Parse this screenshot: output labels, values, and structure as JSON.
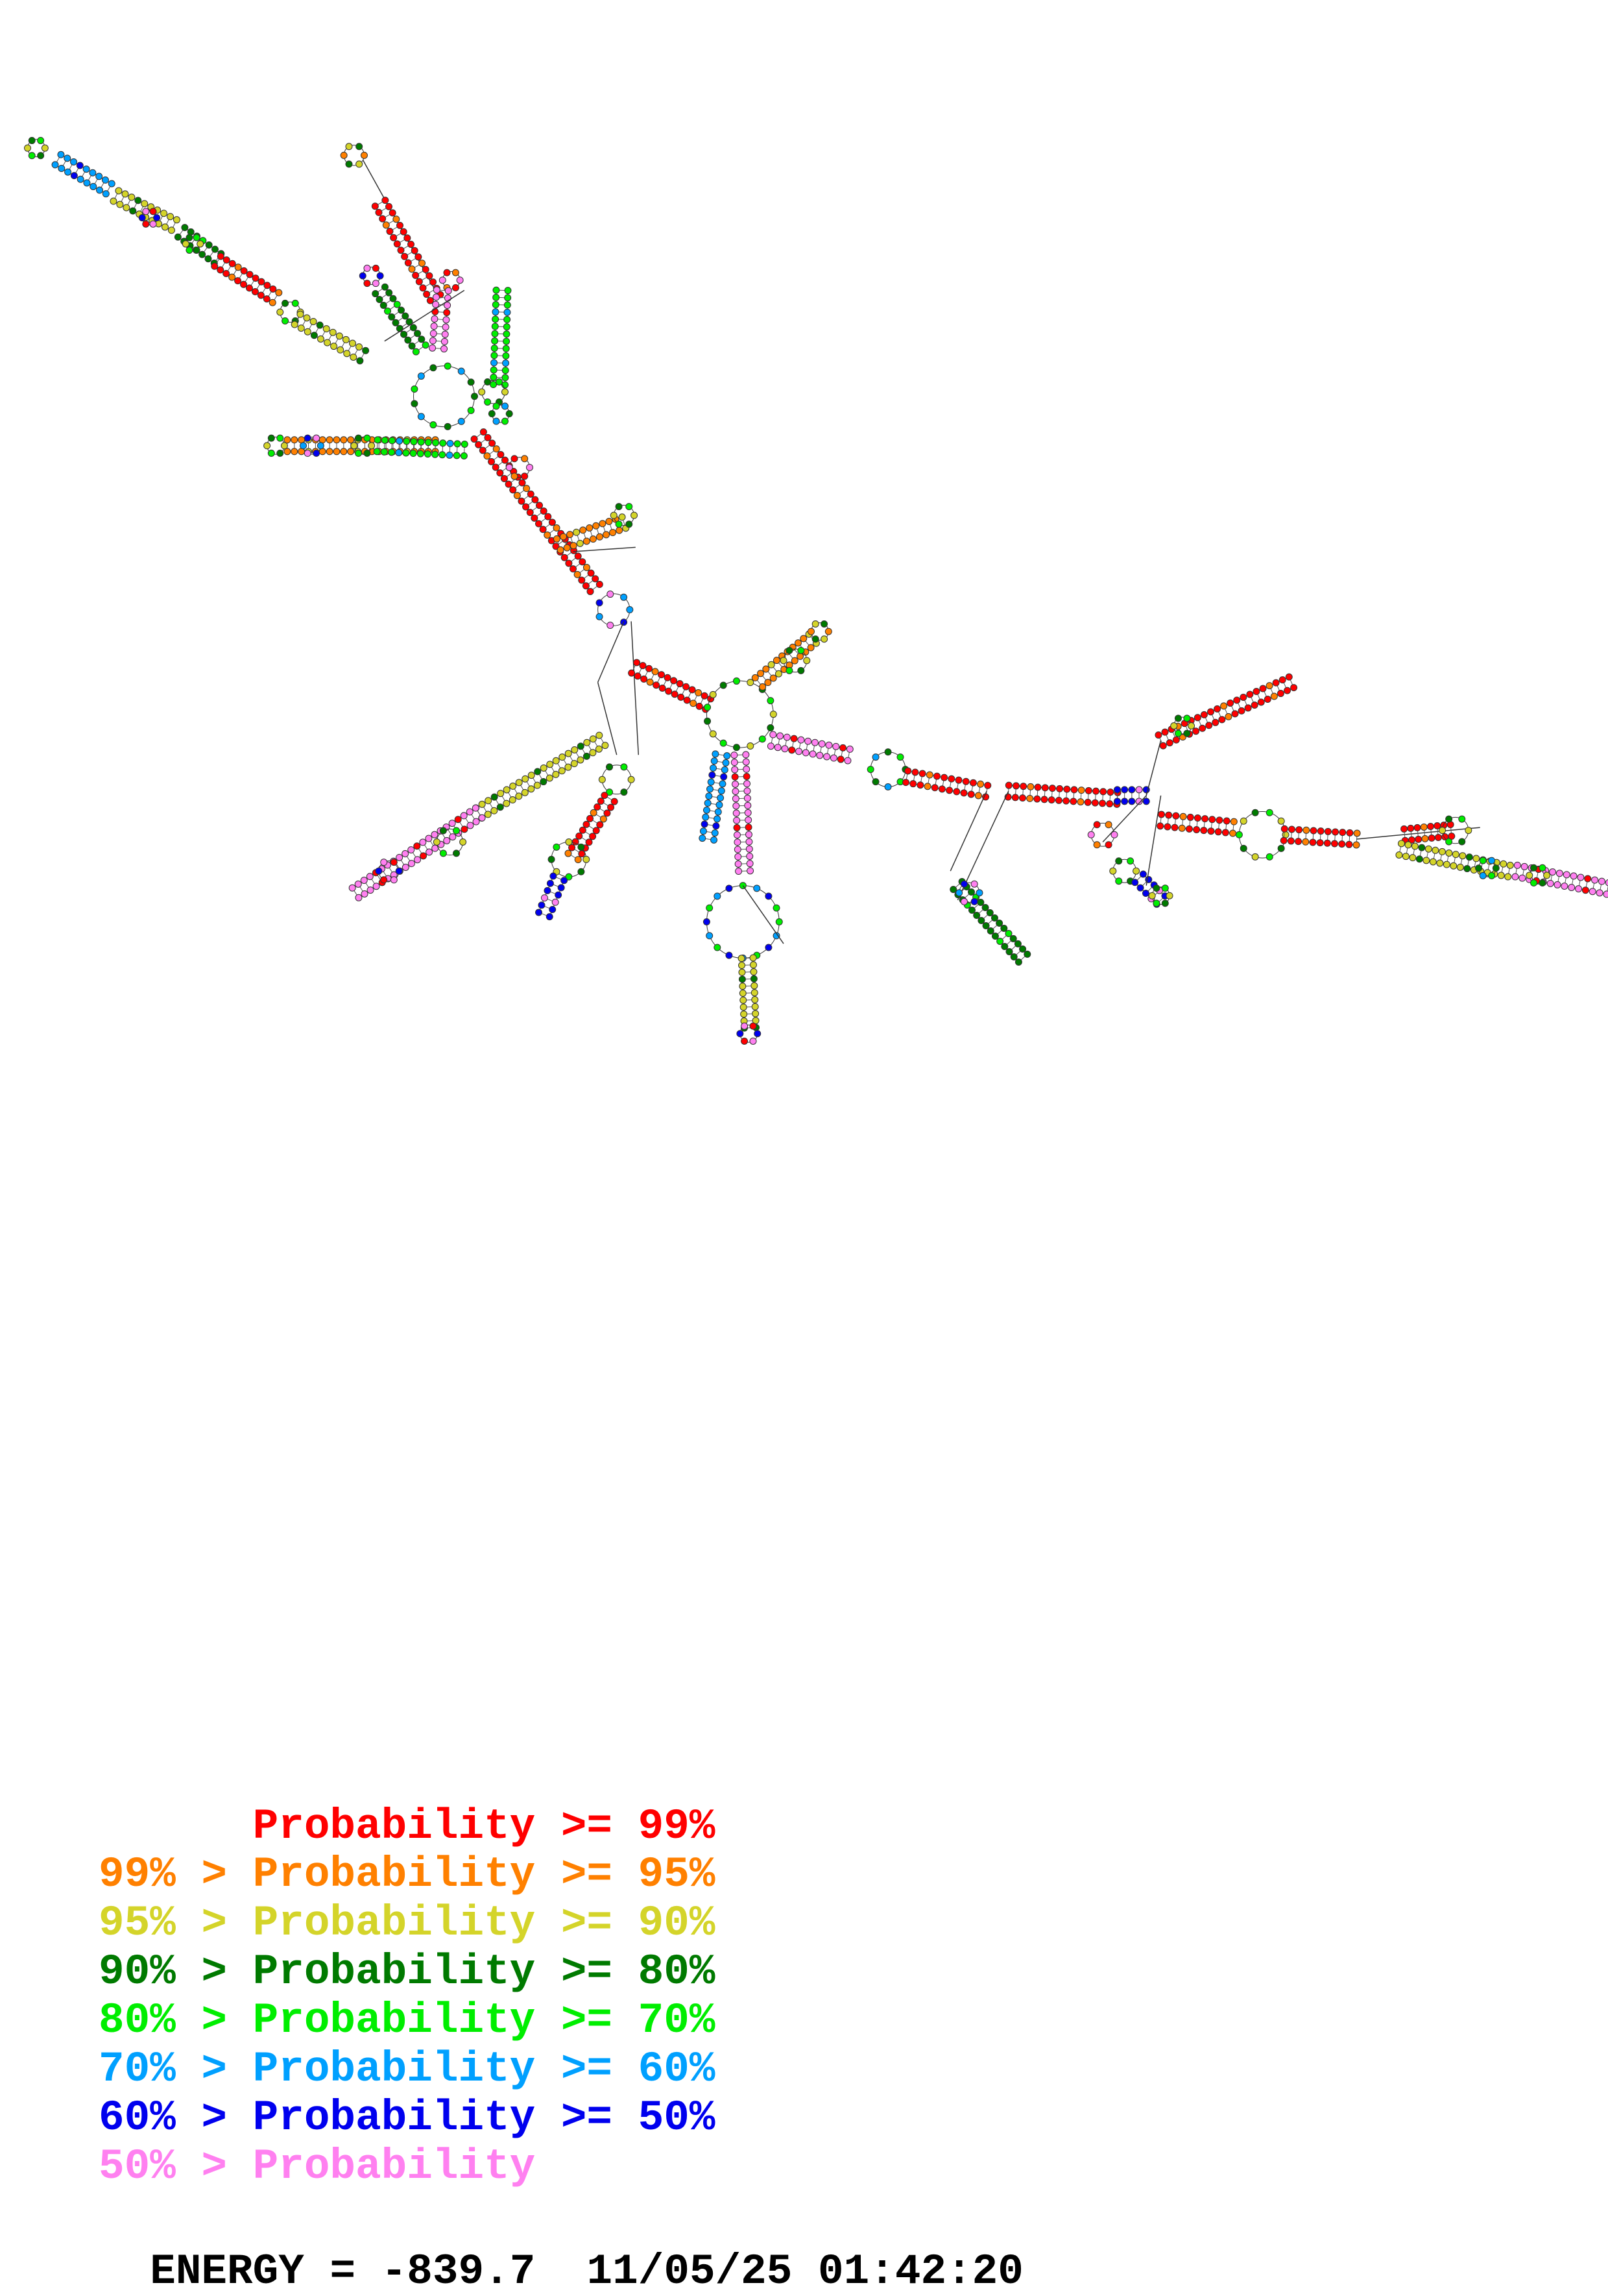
{
  "legend": [
    {
      "lower": "",
      "sep": "",
      "label": "Probability",
      "cmp": ">=",
      "upper": "99%",
      "color": "#ff0000"
    },
    {
      "lower": "99%",
      "sep": ">",
      "label": "Probability",
      "cmp": ">=",
      "upper": "95%",
      "color": "#ff8000"
    },
    {
      "lower": "95%",
      "sep": ">",
      "label": "Probability",
      "cmp": ">=",
      "upper": "90%",
      "color": "#d4d42a"
    },
    {
      "lower": "90%",
      "sep": ">",
      "label": "Probability",
      "cmp": ">=",
      "upper": "80%",
      "color": "#007a00"
    },
    {
      "lower": "80%",
      "sep": ">",
      "label": "Probability",
      "cmp": ">=",
      "upper": "70%",
      "color": "#00ee00"
    },
    {
      "lower": "70%",
      "sep": ">",
      "label": "Probability",
      "cmp": ">=",
      "upper": "60%",
      "color": "#00a0ff"
    },
    {
      "lower": "60%",
      "sep": ">",
      "label": "Probability",
      "cmp": ">=",
      "upper": "50%",
      "color": "#0000ee"
    },
    {
      "lower": "50%",
      "sep": ">",
      "label": "Probability",
      "cmp": "",
      "upper": "",
      "color": "#ff80f0"
    }
  ],
  "energy": {
    "label": "ENERGY",
    "eq": "=",
    "value": "-839.7",
    "date": "11/05/25",
    "time": "01:42:20"
  },
  "structure": {
    "type": "RNA secondary structure",
    "colors": [
      "#ff0000",
      "#ff8000",
      "#d4d42a",
      "#007a00",
      "#00ee00",
      "#00a0ff",
      "#0000ee",
      "#ff80f0"
    ]
  }
}
